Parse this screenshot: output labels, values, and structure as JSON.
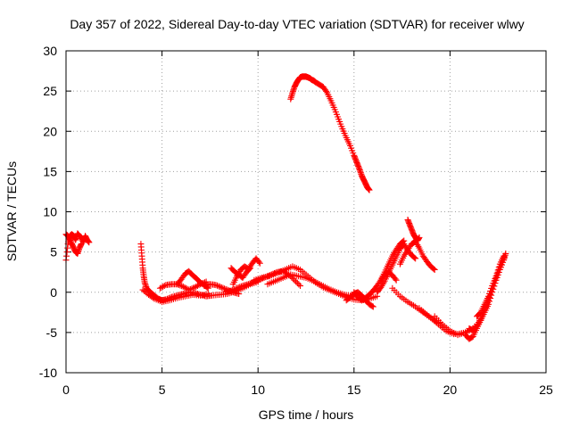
{
  "chart_data": {
    "type": "scatter",
    "title": "Day 357 of 2022, Sidereal Day-to-day VTEC variation (SDTVAR) for receiver wlwy",
    "xlabel": "GPS time / hours",
    "ylabel": "SDTVAR / TECUs",
    "xlim": [
      0,
      25
    ],
    "ylim": [
      -10,
      30
    ],
    "xticks": [
      0,
      5,
      10,
      15,
      20,
      25
    ],
    "yticks": [
      -10,
      -5,
      0,
      5,
      10,
      15,
      20,
      25,
      30
    ],
    "grid": true,
    "marker": "+",
    "series": [
      {
        "name": "wlwy",
        "color": "#ff0000",
        "segments": [
          {
            "x": [
              0.0,
              0.1,
              0.2,
              0.3,
              0.4,
              0.5,
              0.6,
              0.7,
              0.8,
              0.9,
              1.0,
              1.1,
              1.2
            ],
            "y": [
              4.0,
              6.0,
              7.0,
              7.2,
              7.0,
              6.5,
              7.3,
              7.0,
              6.8,
              6.2,
              7.0,
              6.5,
              6.2
            ]
          },
          {
            "x": [
              0.0,
              0.1,
              0.2,
              0.3,
              0.4,
              0.5,
              0.6,
              0.7,
              0.8
            ],
            "y": [
              7.2,
              7.0,
              6.6,
              6.0,
              5.5,
              5.0,
              4.8,
              5.5,
              6.0
            ]
          },
          {
            "x": [
              3.9,
              3.95,
              4.0,
              4.05,
              4.1,
              4.2,
              4.4,
              4.6,
              4.8,
              5.0,
              5.2,
              5.5,
              5.8,
              6.1,
              6.4,
              6.7,
              7.0,
              7.3,
              7.6,
              8.0,
              8.4,
              8.8,
              9.2,
              9.6,
              10.0
            ],
            "y": [
              6.0,
              4.5,
              3.0,
              2.0,
              1.2,
              0.5,
              0.0,
              -0.4,
              -0.8,
              -1.0,
              -0.9,
              -0.6,
              -0.4,
              -0.2,
              0.0,
              -0.1,
              -0.3,
              -0.5,
              -0.4,
              -0.3,
              -0.2,
              0.1,
              0.5,
              1.0,
              1.3
            ]
          },
          {
            "x": [
              4.0,
              4.3,
              4.6,
              5.0,
              5.4,
              5.8,
              6.2,
              6.6,
              7.0,
              7.4
            ],
            "y": [
              0.3,
              -0.3,
              -0.8,
              -1.2,
              -1.0,
              -0.7,
              -0.5,
              -0.3,
              -0.4,
              -0.2
            ]
          },
          {
            "x": [
              4.9,
              5.2,
              5.5,
              5.8,
              6.1,
              6.4,
              6.7,
              7.0,
              7.3
            ],
            "y": [
              0.5,
              0.9,
              1.0,
              1.0,
              0.7,
              0.3,
              0.6,
              1.0,
              1.3
            ]
          },
          {
            "x": [
              5.8,
              6.0,
              6.2,
              6.4,
              6.6,
              6.8,
              7.0,
              7.2,
              7.4
            ],
            "y": [
              1.0,
              1.6,
              2.3,
              2.6,
              2.1,
              1.7,
              1.2,
              0.9,
              0.5
            ]
          },
          {
            "x": [
              7.2,
              7.5,
              7.8,
              8.1,
              8.4,
              8.7,
              9.0
            ],
            "y": [
              0.8,
              1.0,
              0.9,
              0.6,
              0.3,
              0.0,
              -0.2
            ]
          },
          {
            "x": [
              8.3,
              8.6,
              8.9,
              9.2,
              9.5,
              9.8,
              10.1,
              10.4,
              10.7,
              11.0,
              11.3,
              11.6,
              11.9,
              12.2
            ],
            "y": [
              0.0,
              0.2,
              0.5,
              0.8,
              1.0,
              1.3,
              1.6,
              1.9,
              2.2,
              2.5,
              2.6,
              2.2,
              1.5,
              0.8
            ]
          },
          {
            "x": [
              8.7,
              8.9,
              9.1,
              9.3,
              9.5,
              9.7,
              9.9,
              10.1
            ],
            "y": [
              1.0,
              2.0,
              2.8,
              3.2,
              2.9,
              3.6,
              4.2,
              3.6
            ]
          },
          {
            "x": [
              8.6,
              8.8,
              9.0,
              9.2,
              9.4,
              9.6
            ],
            "y": [
              3.0,
              2.5,
              2.2,
              1.8,
              2.5,
              3.0
            ]
          },
          {
            "x": [
              9.8,
              10.2,
              10.6,
              11.0,
              11.4,
              11.8,
              12.2,
              12.6,
              13.0,
              13.4,
              13.8,
              14.2,
              14.6,
              15.0,
              15.4,
              15.8,
              16.2
            ],
            "y": [
              1.5,
              1.8,
              2.0,
              2.4,
              2.8,
              3.2,
              2.8,
              2.0,
              1.2,
              0.6,
              0.2,
              -0.2,
              -0.6,
              -0.9,
              -1.0,
              -0.8,
              -0.5
            ]
          },
          {
            "x": [
              10.5,
              10.9,
              11.3,
              11.7,
              12.1,
              12.5,
              12.9,
              13.3,
              13.7,
              14.1,
              14.5,
              14.9
            ],
            "y": [
              1.0,
              1.4,
              1.8,
              2.2,
              2.0,
              1.8,
              1.4,
              0.9,
              0.4,
              0.0,
              -0.3,
              -0.5
            ]
          },
          {
            "x": [
              11.7,
              11.8,
              11.9,
              12.0,
              12.1,
              12.2,
              12.3,
              12.4,
              12.5,
              12.6,
              12.7,
              12.8,
              12.9,
              13.0,
              13.2,
              13.4,
              13.6,
              13.8,
              14.0,
              14.2,
              14.4,
              14.6,
              14.8,
              15.0,
              15.1,
              15.2,
              15.3,
              15.4,
              15.5,
              15.6,
              15.7,
              15.8
            ],
            "y": [
              24.0,
              24.8,
              25.5,
              26.0,
              26.4,
              26.7,
              26.8,
              26.8,
              26.8,
              26.7,
              26.6,
              26.4,
              26.3,
              26.1,
              25.8,
              25.5,
              24.8,
              23.8,
              22.7,
              21.5,
              20.3,
              19.2,
              18.2,
              17.0,
              16.4,
              15.8,
              15.2,
              14.5,
              14.0,
              13.5,
              13.0,
              12.7
            ]
          },
          {
            "x": [
              14.6,
              14.8,
              15.0,
              15.2,
              15.4,
              15.6,
              15.8,
              16.0
            ],
            "y": [
              -1.0,
              -0.6,
              -0.2,
              0.0,
              -0.4,
              -1.0,
              -1.5,
              -1.8
            ]
          },
          {
            "x": [
              15.0,
              15.2,
              15.4,
              15.6,
              15.8,
              16.0,
              16.2,
              16.4,
              16.6,
              16.8,
              17.0,
              17.2
            ],
            "y": [
              0.0,
              -0.6,
              -1.0,
              -0.7,
              -0.3,
              0.2,
              0.8,
              1.5,
              2.2,
              2.5,
              2.1,
              1.5
            ]
          },
          {
            "x": [
              16.2,
              16.4,
              16.6,
              16.8,
              17.0,
              17.2,
              17.4,
              17.6,
              17.8,
              18.0,
              18.2
            ],
            "y": [
              0.0,
              0.6,
              1.4,
              2.4,
              3.4,
              4.4,
              5.4,
              6.0,
              5.2,
              4.6,
              4.2
            ]
          },
          {
            "x": [
              16.4,
              16.6,
              16.8,
              17.0,
              17.2,
              17.4,
              17.6
            ],
            "y": [
              1.5,
              2.5,
              3.5,
              4.5,
              5.3,
              6.0,
              6.4
            ]
          },
          {
            "x": [
              17.4,
              17.6,
              17.8,
              18.0,
              18.2,
              18.4,
              18.6,
              18.8,
              19.0,
              19.2
            ],
            "y": [
              3.5,
              4.5,
              5.3,
              6.0,
              6.3,
              5.5,
              4.5,
              3.8,
              3.2,
              2.8
            ]
          },
          {
            "x": [
              17.8,
              17.9,
              18.0,
              18.1,
              18.2,
              18.3,
              18.4
            ],
            "y": [
              9.0,
              8.4,
              7.8,
              7.2,
              6.8,
              6.4,
              6.8
            ]
          },
          {
            "x": [
              17.0,
              17.4,
              17.8,
              18.2,
              18.6,
              19.0,
              19.4,
              19.8,
              20.2
            ],
            "y": [
              0.5,
              -0.5,
              -1.2,
              -1.8,
              -2.5,
              -3.2,
              -4.0,
              -4.8,
              -5.2
            ]
          },
          {
            "x": [
              18.4,
              18.8,
              19.2,
              19.6,
              20.0,
              20.4,
              20.8,
              21.2
            ],
            "y": [
              -2.0,
              -2.8,
              -3.5,
              -4.2,
              -5.0,
              -5.2,
              -5.0,
              -4.5
            ]
          },
          {
            "x": [
              19.2,
              19.6,
              20.0,
              20.4,
              20.8,
              21.2,
              21.6
            ],
            "y": [
              -3.0,
              -4.0,
              -4.8,
              -5.3,
              -5.0,
              -4.5,
              -3.5
            ]
          },
          {
            "x": [
              20.8,
              21.0,
              21.2,
              21.4,
              21.6,
              21.8,
              22.0,
              22.2,
              22.4,
              22.6,
              22.8,
              22.9
            ],
            "y": [
              -5.3,
              -5.8,
              -5.5,
              -4.5,
              -3.5,
              -2.5,
              -1.5,
              0.0,
              1.5,
              2.8,
              4.0,
              4.8
            ]
          },
          {
            "x": [
              21.0,
              21.2,
              21.4,
              21.6,
              21.8,
              22.0,
              22.2,
              22.4,
              22.6,
              22.8
            ],
            "y": [
              -4.5,
              -4.8,
              -4.2,
              -3.3,
              -2.2,
              -1.0,
              0.5,
              1.8,
              3.2,
              4.3
            ]
          },
          {
            "x": [
              21.4,
              21.6,
              21.8,
              22.0,
              22.2,
              22.4,
              22.6,
              22.8
            ],
            "y": [
              -3.0,
              -2.5,
              -1.5,
              -0.5,
              0.8,
              2.0,
              3.5,
              4.5
            ]
          }
        ]
      }
    ]
  }
}
